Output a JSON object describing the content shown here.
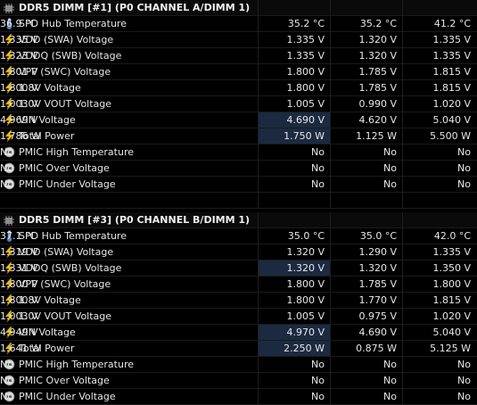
{
  "groups": [
    {
      "title": "DDR5 DIMM [#1] (P0 CHANNEL A/DIMM 1)",
      "rows": [
        {
          "icon": "thermometer-icon",
          "label": "SPD Hub Temperature",
          "v": [
            "35.2 °C",
            "35.2 °C",
            "41.2 °C",
            "36.9 °C"
          ],
          "hl": false
        },
        {
          "icon": "lightning-icon",
          "label": "VDD (SWA) Voltage",
          "v": [
            "1.335 V",
            "1.320 V",
            "1.335 V",
            "1.335 V"
          ],
          "hl": false
        },
        {
          "icon": "lightning-icon",
          "label": "VDDQ (SWB) Voltage",
          "v": [
            "1.335 V",
            "1.320 V",
            "1.335 V",
            "1.323 V"
          ],
          "hl": false
        },
        {
          "icon": "lightning-icon",
          "label": "VPP (SWC) Voltage",
          "v": [
            "1.800 V",
            "1.785 V",
            "1.815 V",
            "1.801 V"
          ],
          "hl": false
        },
        {
          "icon": "lightning-icon",
          "label": "1.8V Voltage",
          "v": [
            "1.800 V",
            "1.785 V",
            "1.815 V",
            "1.800 V"
          ],
          "hl": false
        },
        {
          "icon": "lightning-icon",
          "label": "1.0V VOUT Voltage",
          "v": [
            "1.005 V",
            "0.990 V",
            "1.020 V",
            "1.003 V"
          ],
          "hl": false
        },
        {
          "icon": "lightning-icon",
          "label": "VIN Voltage",
          "v": [
            "4.690 V",
            "4.620 V",
            "5.040 V",
            "4.969 V"
          ],
          "hl": true
        },
        {
          "icon": "lightning-icon",
          "label": "Total Power",
          "v": [
            "1.750 W",
            "1.125 W",
            "5.500 W",
            "1.786 W"
          ],
          "hl": true
        },
        {
          "icon": "status-icon",
          "label": "PMIC High Temperature",
          "v": [
            "No",
            "No",
            "No",
            "No"
          ],
          "hl": false
        },
        {
          "icon": "status-icon",
          "label": "PMIC Over Voltage",
          "v": [
            "No",
            "No",
            "No",
            "No"
          ],
          "hl": false
        },
        {
          "icon": "status-icon",
          "label": "PMIC Under Voltage",
          "v": [
            "No",
            "No",
            "No",
            "No"
          ],
          "hl": false
        }
      ]
    },
    {
      "title": "DDR5 DIMM [#3] (P0 CHANNEL B/DIMM 1)",
      "rows": [
        {
          "icon": "thermometer-icon",
          "label": "SPD Hub Temperature",
          "v": [
            "35.0 °C",
            "35.0 °C",
            "42.0 °C",
            "37.1 °C"
          ],
          "hl": false
        },
        {
          "icon": "lightning-icon",
          "label": "VDD (SWA) Voltage",
          "v": [
            "1.320 V",
            "1.290 V",
            "1.335 V",
            "1.319 V"
          ],
          "hl": false
        },
        {
          "icon": "lightning-icon",
          "label": "VDDQ (SWB) Voltage",
          "v": [
            "1.320 V",
            "1.320 V",
            "1.350 V",
            "1.331 V"
          ],
          "hl": true
        },
        {
          "icon": "lightning-icon",
          "label": "VPP (SWC) Voltage",
          "v": [
            "1.800 V",
            "1.785 V",
            "1.800 V",
            "1.800 V"
          ],
          "hl": false
        },
        {
          "icon": "lightning-icon",
          "label": "1.8V Voltage",
          "v": [
            "1.800 V",
            "1.770 V",
            "1.815 V",
            "1.800 V"
          ],
          "hl": false
        },
        {
          "icon": "lightning-icon",
          "label": "1.0V VOUT Voltage",
          "v": [
            "1.005 V",
            "0.975 V",
            "1.020 V",
            "1.003 V"
          ],
          "hl": false
        },
        {
          "icon": "lightning-icon",
          "label": "VIN Voltage",
          "v": [
            "4.970 V",
            "4.690 V",
            "5.040 V",
            "4.949 V"
          ],
          "hl": true
        },
        {
          "icon": "lightning-icon",
          "label": "Total Power",
          "v": [
            "2.250 W",
            "0.875 W",
            "5.125 W",
            "1.641 W"
          ],
          "hl": true
        },
        {
          "icon": "status-icon",
          "label": "PMIC High Temperature",
          "v": [
            "No",
            "No",
            "No",
            "No"
          ],
          "hl": false
        },
        {
          "icon": "status-icon",
          "label": "PMIC Over Voltage",
          "v": [
            "No",
            "No",
            "No",
            "No"
          ],
          "hl": false
        },
        {
          "icon": "status-icon",
          "label": "PMIC Under Voltage",
          "v": [
            "No",
            "No",
            "No",
            "No"
          ],
          "hl": false
        }
      ]
    }
  ],
  "colors": {
    "background": "#000000",
    "highlight": "#1b2a40",
    "lightning": "#f2c200",
    "thermometer": "#3f7fd9"
  }
}
